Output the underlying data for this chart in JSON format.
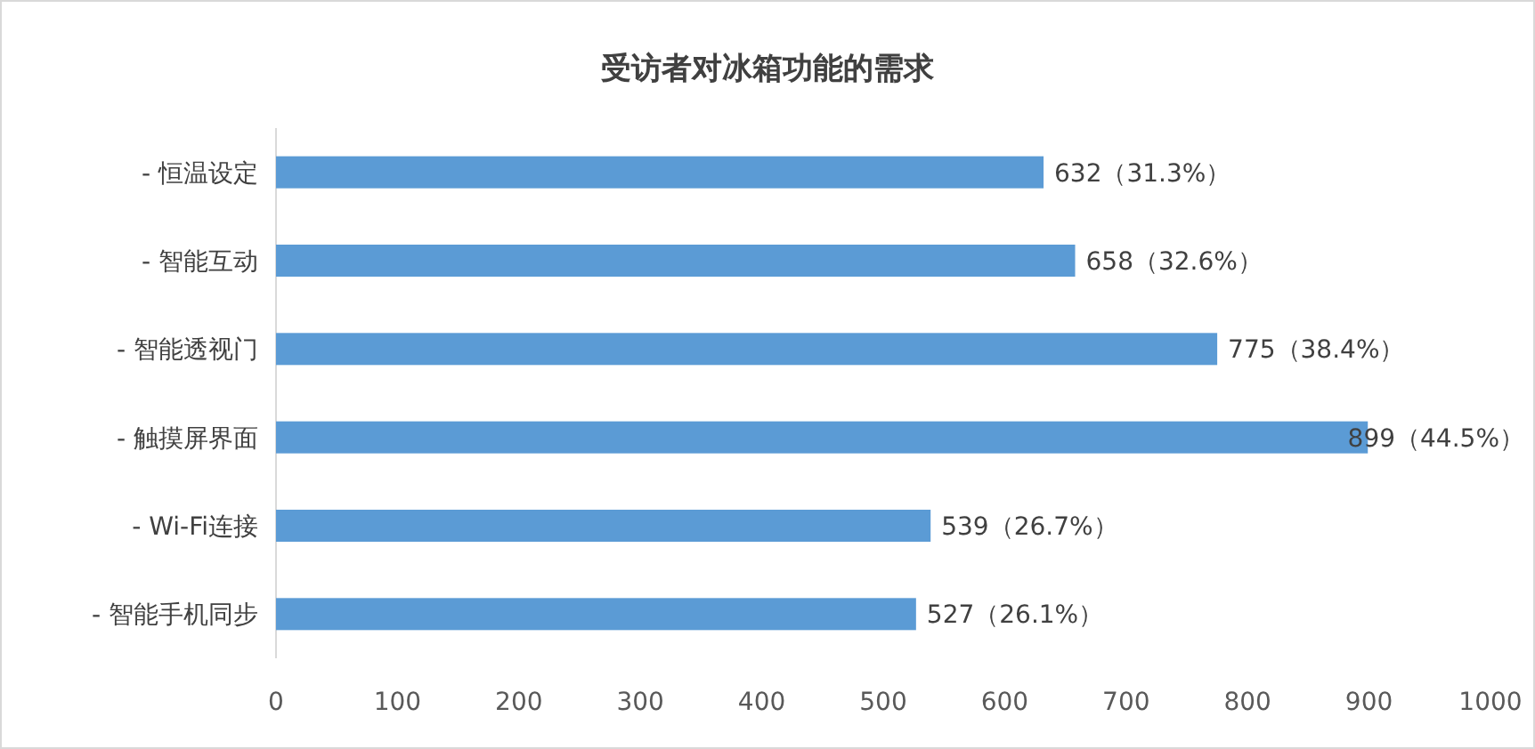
{
  "chart_data": {
    "type": "bar",
    "orientation": "horizontal",
    "title": "受访者对冰箱功能的需求",
    "categories": [
      "- 恒温设定",
      "- 智能互动",
      "- 智能透视门",
      "- 触摸屏界面",
      "- Wi-Fi连接",
      "- 智能手机同步"
    ],
    "values": [
      632,
      658,
      775,
      899,
      539,
      527
    ],
    "value_labels": [
      "632（31.3%）",
      "658（32.6%）",
      "775（38.4%）",
      "899（44.5%）",
      "539（26.7%）",
      "527（26.1%）"
    ],
    "color": "#5b9bd5",
    "xlim": [
      0,
      1000
    ],
    "xticks": [
      0,
      100,
      200,
      300,
      400,
      500,
      600,
      700,
      800,
      900,
      1000
    ]
  }
}
